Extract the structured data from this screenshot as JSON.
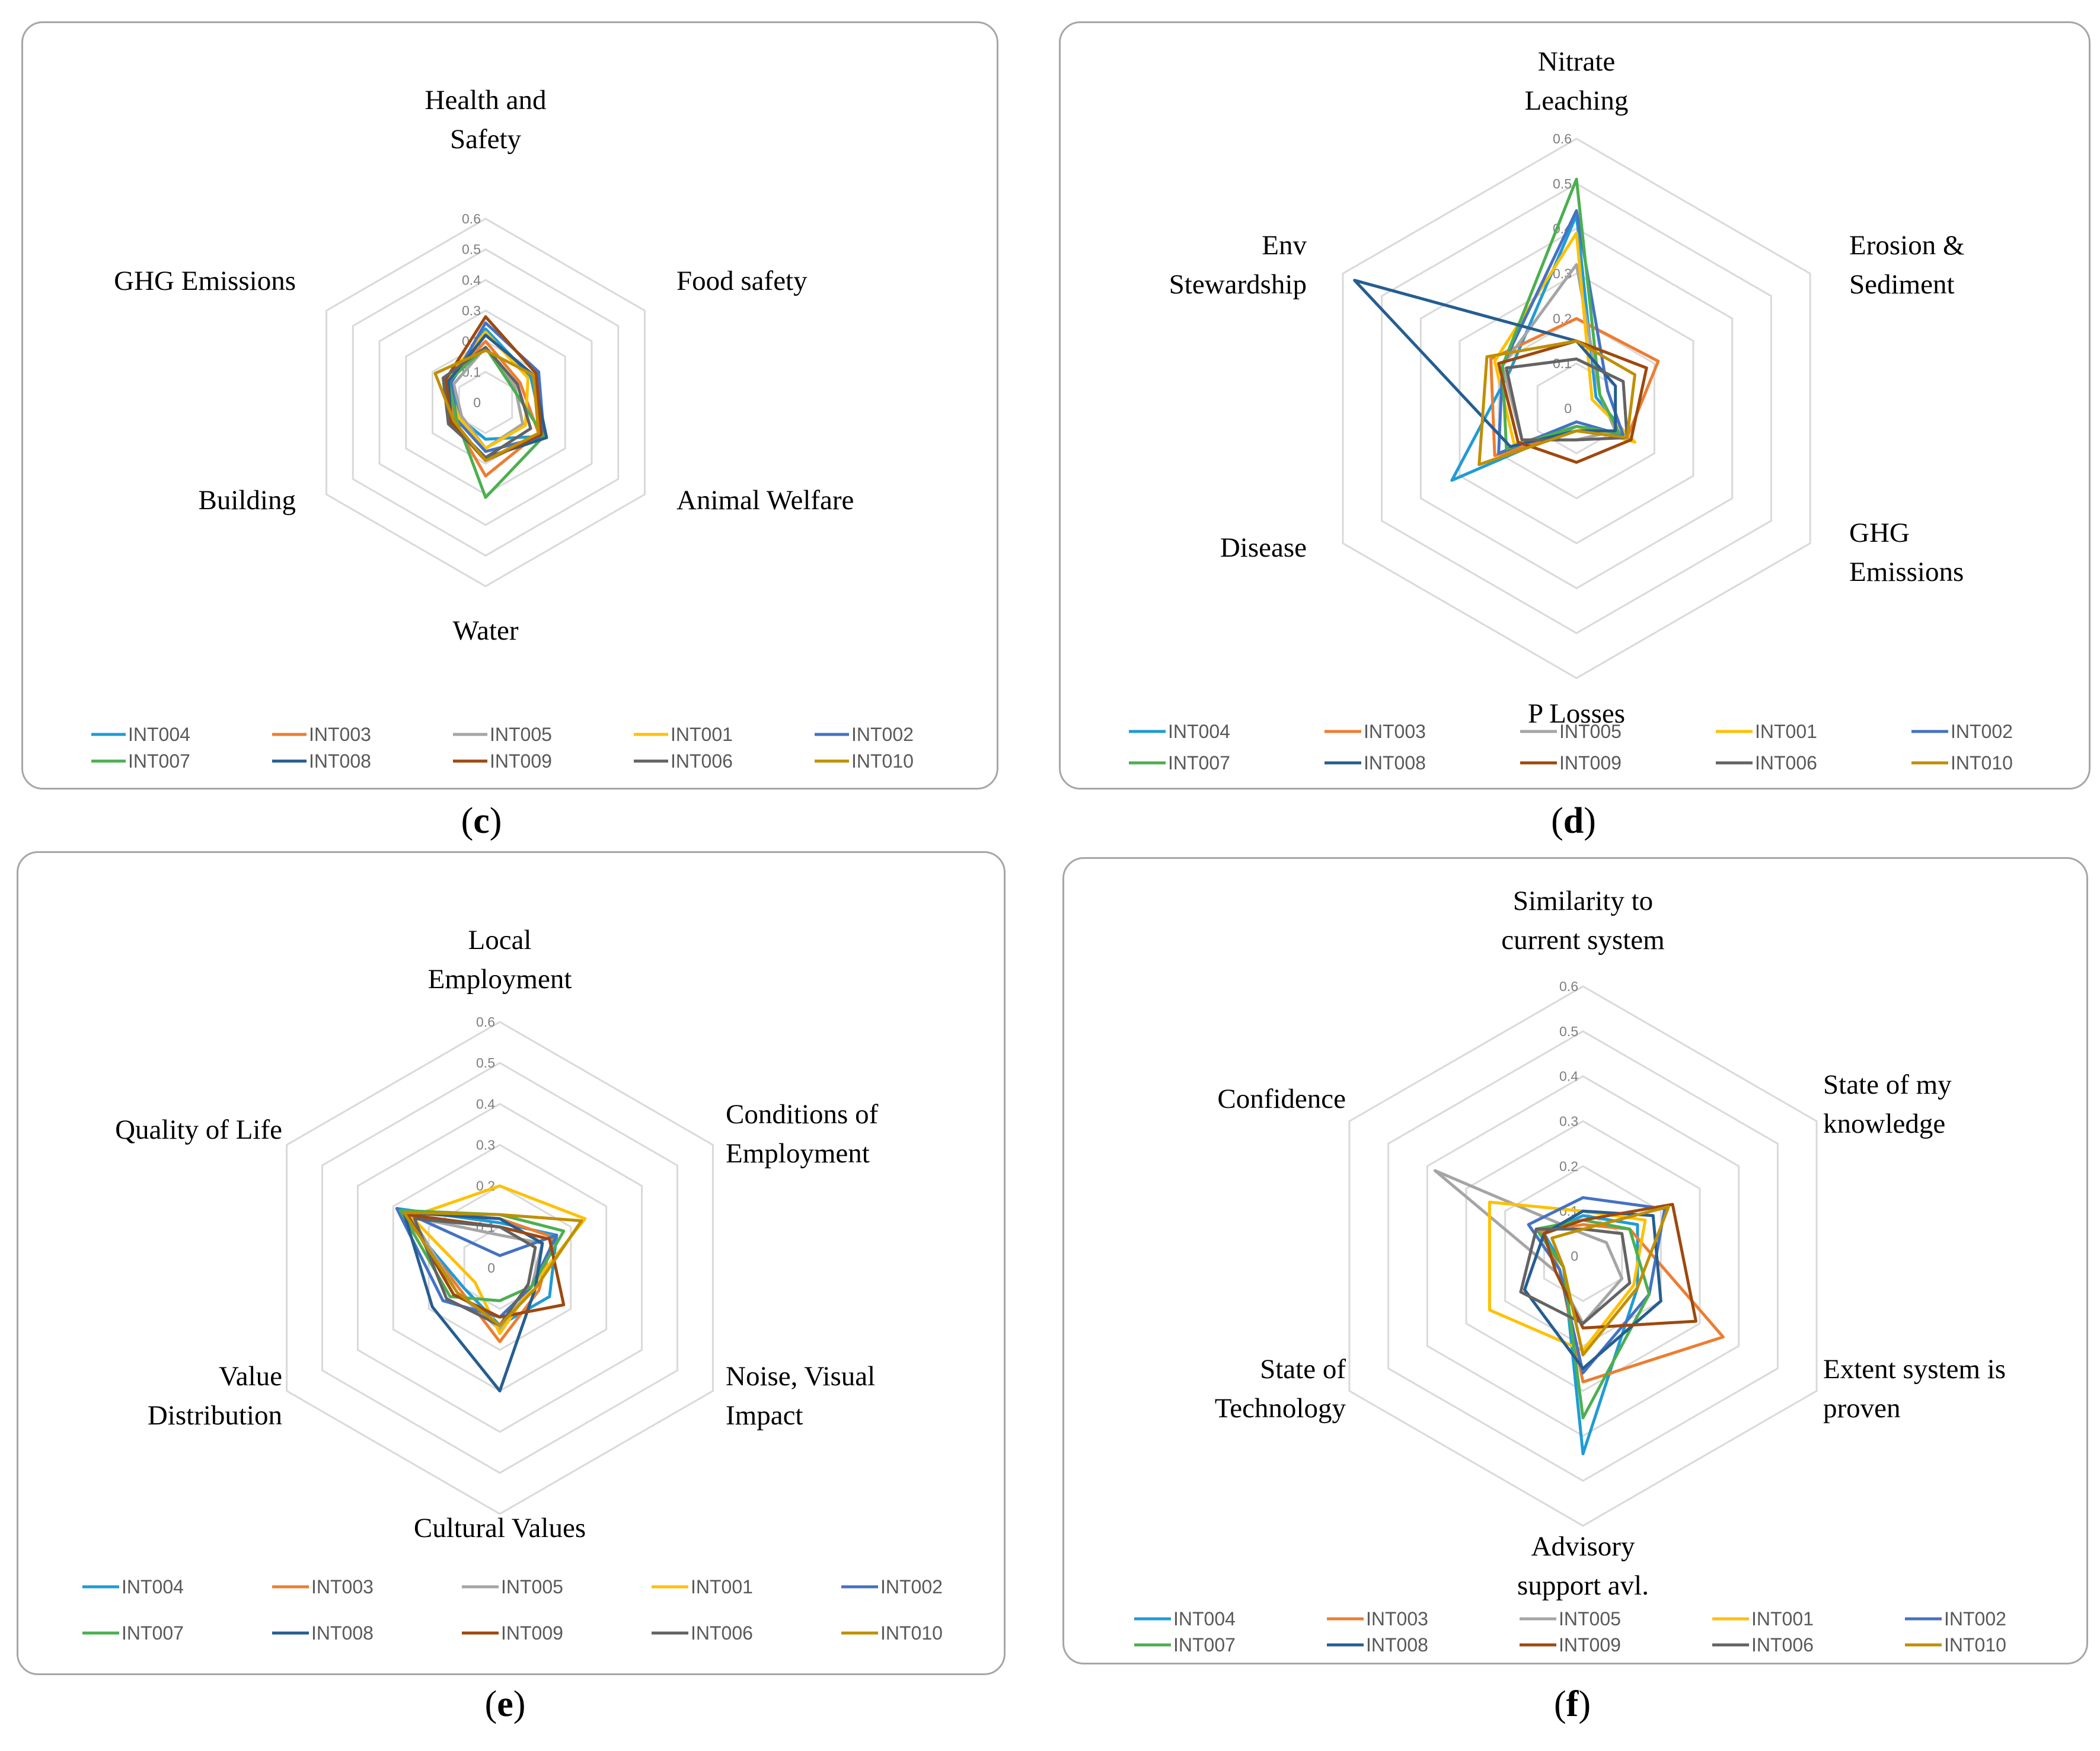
{
  "captions": [
    "c",
    "d",
    "e",
    "f"
  ],
  "chart_data": [
    {
      "type": "radar",
      "panel": "c",
      "axes": [
        "Health and Safety",
        "Food safety",
        "Animal Welfare",
        "Water",
        "Building",
        "GHG Emissions"
      ],
      "ticks": [
        "0",
        "0.1",
        "0.2",
        "0.3",
        "0.4",
        "0.5",
        "0.6"
      ],
      "rmax": 0.6,
      "series": [
        {
          "name": "INT004",
          "color": "#1f9bd7",
          "values": [
            0.24,
            0.17,
            0.22,
            0.12,
            0.1,
            0.13
          ]
        },
        {
          "name": "INT003",
          "color": "#ed7d31",
          "values": [
            0.2,
            0.13,
            0.2,
            0.24,
            0.12,
            0.14
          ]
        },
        {
          "name": "INT005",
          "color": "#a5a5a5",
          "values": [
            0.18,
            0.11,
            0.14,
            0.15,
            0.09,
            0.12
          ]
        },
        {
          "name": "INT001",
          "color": "#ffc000",
          "values": [
            0.23,
            0.16,
            0.15,
            0.15,
            0.1,
            0.15
          ]
        },
        {
          "name": "INT002",
          "color": "#4472c4",
          "values": [
            0.26,
            0.2,
            0.22,
            0.16,
            0.11,
            0.13
          ]
        },
        {
          "name": "INT007",
          "color": "#4caf50",
          "values": [
            0.18,
            0.1,
            0.22,
            0.31,
            0.11,
            0.14
          ]
        },
        {
          "name": "INT008",
          "color": "#255e91",
          "values": [
            0.22,
            0.18,
            0.23,
            0.18,
            0.13,
            0.14
          ]
        },
        {
          "name": "INT009",
          "color": "#9e480e",
          "values": [
            0.28,
            0.19,
            0.21,
            0.19,
            0.13,
            0.15
          ]
        },
        {
          "name": "INT006",
          "color": "#636363",
          "values": [
            0.18,
            0.12,
            0.17,
            0.18,
            0.14,
            0.16
          ]
        },
        {
          "name": "INT010",
          "color": "#c08f00",
          "values": [
            0.17,
            0.18,
            0.2,
            0.19,
            0.12,
            0.19
          ]
        }
      ]
    },
    {
      "type": "radar",
      "panel": "d",
      "axes": [
        "Nitrate Leaching",
        "Erosion & Sediment",
        "GHG Emissions",
        "P Losses",
        "Disease",
        "Env Stewardship"
      ],
      "ticks": [
        "0",
        "0.1",
        "0.2",
        "0.3",
        "0.4",
        "0.5",
        "0.6"
      ],
      "rmax": 0.6,
      "series": [
        {
          "name": "INT004",
          "color": "#1f9bd7",
          "values": [
            0.43,
            0.05,
            0.14,
            0.04,
            0.32,
            0.17
          ]
        },
        {
          "name": "INT003",
          "color": "#ed7d31",
          "values": [
            0.2,
            0.21,
            0.13,
            0.05,
            0.21,
            0.22
          ]
        },
        {
          "name": "INT005",
          "color": "#a5a5a5",
          "values": [
            0.32,
            0.06,
            0.1,
            0.07,
            0.14,
            0.19
          ]
        },
        {
          "name": "INT001",
          "color": "#ffc000",
          "values": [
            0.39,
            0.04,
            0.15,
            0.04,
            0.16,
            0.21
          ]
        },
        {
          "name": "INT002",
          "color": "#4472c4",
          "values": [
            0.44,
            0.08,
            0.12,
            0.03,
            0.2,
            0.19
          ]
        },
        {
          "name": "INT007",
          "color": "#4caf50",
          "values": [
            0.51,
            0.06,
            0.11,
            0.04,
            0.18,
            0.19
          ]
        },
        {
          "name": "INT008",
          "color": "#255e91",
          "values": [
            0.15,
            0.1,
            0.1,
            0.05,
            0.17,
            0.57
          ]
        },
        {
          "name": "INT009",
          "color": "#9e480e",
          "values": [
            0.15,
            0.18,
            0.14,
            0.12,
            0.15,
            0.2
          ]
        },
        {
          "name": "INT006",
          "color": "#636363",
          "values": [
            0.11,
            0.12,
            0.13,
            0.07,
            0.14,
            0.18
          ]
        },
        {
          "name": "INT010",
          "color": "#c08f00",
          "values": [
            0.15,
            0.15,
            0.13,
            0.05,
            0.25,
            0.23
          ]
        }
      ]
    },
    {
      "type": "radar",
      "panel": "e",
      "axes": [
        "Local Employment",
        "Conditions of Employment",
        "Noise, Visual Impact",
        "Cultural Values",
        "Value Distribution",
        "Quality of Life"
      ],
      "ticks": [
        "0",
        "0.1",
        "0.2",
        "0.3",
        "0.4",
        "0.5",
        "0.6"
      ],
      "rmax": 0.6,
      "series": [
        {
          "name": "INT004",
          "color": "#1f9bd7",
          "values": [
            0.11,
            0.16,
            0.14,
            0.14,
            0.1,
            0.29
          ]
        },
        {
          "name": "INT003",
          "color": "#ed7d31",
          "values": [
            0.12,
            0.15,
            0.11,
            0.18,
            0.11,
            0.28
          ]
        },
        {
          "name": "INT005",
          "color": "#a5a5a5",
          "values": [
            0.08,
            0.12,
            0.09,
            0.15,
            0.12,
            0.25
          ]
        },
        {
          "name": "INT001",
          "color": "#ffc000",
          "values": [
            0.2,
            0.24,
            0.09,
            0.16,
            0.07,
            0.25
          ]
        },
        {
          "name": "INT002",
          "color": "#4472c4",
          "values": [
            0.03,
            0.16,
            0.09,
            0.12,
            0.16,
            0.29
          ]
        },
        {
          "name": "INT007",
          "color": "#4caf50",
          "values": [
            0.13,
            0.18,
            0.09,
            0.08,
            0.14,
            0.28
          ]
        },
        {
          "name": "INT008",
          "color": "#255e91",
          "values": [
            0.12,
            0.12,
            0.1,
            0.3,
            0.19,
            0.27
          ]
        },
        {
          "name": "INT009",
          "color": "#9e480e",
          "values": [
            0.1,
            0.14,
            0.18,
            0.12,
            0.13,
            0.26
          ]
        },
        {
          "name": "INT006",
          "color": "#636363",
          "values": [
            0.1,
            0.1,
            0.08,
            0.14,
            0.15,
            0.24
          ]
        },
        {
          "name": "INT010",
          "color": "#c08f00",
          "values": [
            0.13,
            0.23,
            0.1,
            0.14,
            0.12,
            0.27
          ]
        }
      ]
    },
    {
      "type": "radar",
      "panel": "f",
      "axes": [
        "Similarity to current system",
        "State of my knowledge",
        "Extent system is proven",
        "Advisory support avl.",
        "State of Technology",
        "Confidence"
      ],
      "ticks": [
        "0",
        "0.1",
        "0.2",
        "0.3",
        "0.4",
        "0.5",
        "0.6"
      ],
      "rmax": 0.6,
      "series": [
        {
          "name": "INT004",
          "color": "#1f9bd7",
          "values": [
            0.09,
            0.14,
            0.14,
            0.44,
            0.05,
            0.1
          ]
        },
        {
          "name": "INT003",
          "color": "#ed7d31",
          "values": [
            0.07,
            0.12,
            0.36,
            0.28,
            0.06,
            0.11
          ]
        },
        {
          "name": "INT005",
          "color": "#a5a5a5",
          "values": [
            0.05,
            0.06,
            0.1,
            0.15,
            0.07,
            0.38
          ]
        },
        {
          "name": "INT001",
          "color": "#ffc000",
          "values": [
            0.1,
            0.16,
            0.13,
            0.21,
            0.24,
            0.24
          ]
        },
        {
          "name": "INT002",
          "color": "#4472c4",
          "values": [
            0.13,
            0.21,
            0.17,
            0.26,
            0.06,
            0.14
          ]
        },
        {
          "name": "INT007",
          "color": "#4caf50",
          "values": [
            0.08,
            0.12,
            0.17,
            0.36,
            0.05,
            0.12
          ]
        },
        {
          "name": "INT008",
          "color": "#255e91",
          "values": [
            0.1,
            0.18,
            0.2,
            0.25,
            0.15,
            0.1
          ]
        },
        {
          "name": "INT009",
          "color": "#9e480e",
          "values": [
            0.08,
            0.23,
            0.29,
            0.16,
            0.07,
            0.1
          ]
        },
        {
          "name": "INT006",
          "color": "#636363",
          "values": [
            0.06,
            0.1,
            0.12,
            0.15,
            0.16,
            0.12
          ]
        },
        {
          "name": "INT010",
          "color": "#c08f00",
          "values": [
            0.06,
            0.22,
            0.14,
            0.22,
            0.05,
            0.08
          ]
        }
      ]
    }
  ]
}
